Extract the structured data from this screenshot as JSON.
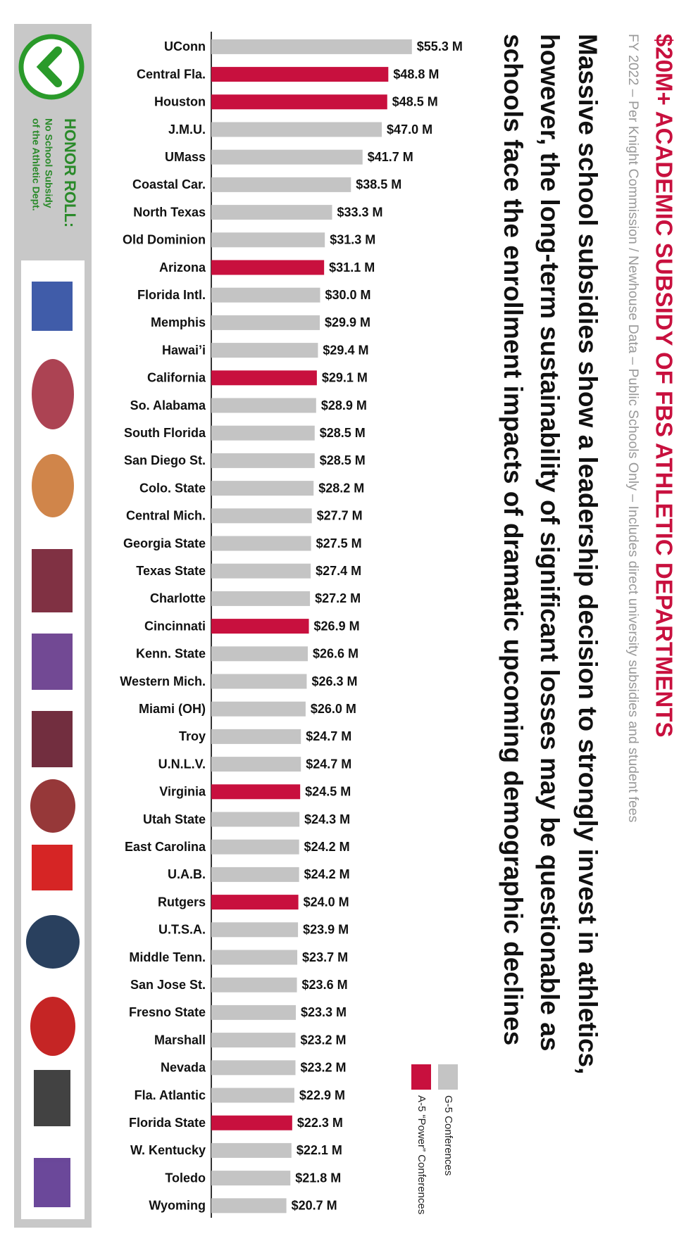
{
  "chart_data": {
    "type": "bar",
    "orientation": "horizontal",
    "title": "$20M+ ACADEMIC SUBSIDY OF FBS ATHLETIC DEPARTMENTS",
    "subtitle": "FY 2022 – Per Knight Commission / Newhouse Data – Public Schools Only – Includes direct university subsidies and student fees",
    "body_lines": [
      "Massive school subsidies show a leadership decision to strongly invest in athletics,",
      "however, the long-term sustainability of significant losses may be questionable as",
      "schools face the enrollment impacts of dramatic upcoming demographic declines"
    ],
    "categories": [
      "UConn",
      "Central Fla.",
      "Houston",
      "J.M.U.",
      "UMass",
      "Coastal Car.",
      "North Texas",
      "Old Dominion",
      "Arizona",
      "Florida Intl.",
      "Memphis",
      "Hawai’i",
      "California",
      "So. Alabama",
      "South Florida",
      "San Diego St.",
      "Colo. State",
      "Central Mich.",
      "Georgia State",
      "Texas State",
      "Charlotte",
      "Cincinnati",
      "Kenn. State",
      "Western Mich.",
      "Miami (OH)",
      "Troy",
      "U.N.L.V.",
      "Virginia",
      "Utah State",
      "East Carolina",
      "U.A.B.",
      "Rutgers",
      "U.T.S.A.",
      "Middle Tenn.",
      "San Jose St.",
      "Fresno State",
      "Marshall",
      "Nevada",
      "Fla. Atlantic",
      "Florida State",
      "W. Kentucky",
      "Toledo",
      "Wyoming"
    ],
    "series": [
      {
        "name": "G-5 Conferences",
        "color": "#c4c4c4",
        "values": [
          55.3,
          null,
          null,
          47.0,
          41.7,
          38.5,
          33.3,
          31.3,
          null,
          30.0,
          29.9,
          29.4,
          null,
          28.9,
          28.5,
          28.5,
          28.2,
          27.7,
          27.5,
          27.4,
          27.2,
          null,
          26.6,
          26.3,
          26.0,
          24.7,
          24.7,
          null,
          24.3,
          24.2,
          24.2,
          null,
          23.9,
          23.7,
          23.6,
          23.3,
          23.2,
          23.2,
          22.9,
          null,
          22.1,
          21.8,
          20.7
        ],
        "value_labels": [
          "$55.3 M",
          null,
          null,
          "$47.0 M",
          "$41.7 M",
          "$38.5 M",
          "$33.3 M",
          "$31.3 M",
          null,
          "$30.0 M",
          "$29.9 M",
          "$29.4 M",
          null,
          "$28.9 M",
          "$28.5 M",
          "$28.5 M",
          "$28.2 M",
          "$27.7 M",
          "$27.5 M",
          "$27.4 M",
          "$27.2 M",
          null,
          "$26.6 M",
          "$26.3 M",
          "$26.0 M",
          "$24.7 M",
          "$24.7 M",
          null,
          "$24.3 M",
          "$24.2 M",
          "$24.2 M",
          null,
          "$23.9 M",
          "$23.7 M",
          "$23.6 M",
          "$23.3 M",
          "$23.2 M",
          "$23.2 M",
          "$22.9 M",
          null,
          "$22.1 M",
          "$21.8 M",
          "$20.7 M"
        ]
      },
      {
        "name": "A-5 “Power” Conferences",
        "color": "#c8103e",
        "values": [
          null,
          48.8,
          48.5,
          null,
          null,
          null,
          null,
          null,
          31.1,
          null,
          null,
          null,
          29.1,
          null,
          null,
          null,
          null,
          null,
          null,
          null,
          null,
          26.9,
          null,
          null,
          null,
          null,
          null,
          24.5,
          null,
          null,
          null,
          24.0,
          null,
          null,
          null,
          null,
          null,
          null,
          null,
          22.3,
          null,
          null,
          null
        ],
        "value_labels": [
          null,
          "$48.8 M",
          "$48.5 M",
          null,
          null,
          null,
          null,
          null,
          "$31.1 M",
          null,
          null,
          null,
          "$29.1 M",
          null,
          null,
          null,
          null,
          null,
          null,
          null,
          null,
          "$26.9 M",
          null,
          null,
          null,
          null,
          null,
          "$24.5 M",
          null,
          null,
          null,
          "$24.0 M",
          null,
          null,
          null,
          null,
          null,
          null,
          null,
          "$22.3 M",
          null,
          null,
          null
        ]
      }
    ],
    "xlim": [
      0,
      60
    ]
  },
  "honor_roll": {
    "title": "HONOR ROLL:",
    "note_lines": [
      "No School Subsidy",
      "of the Athletic Dept."
    ]
  }
}
